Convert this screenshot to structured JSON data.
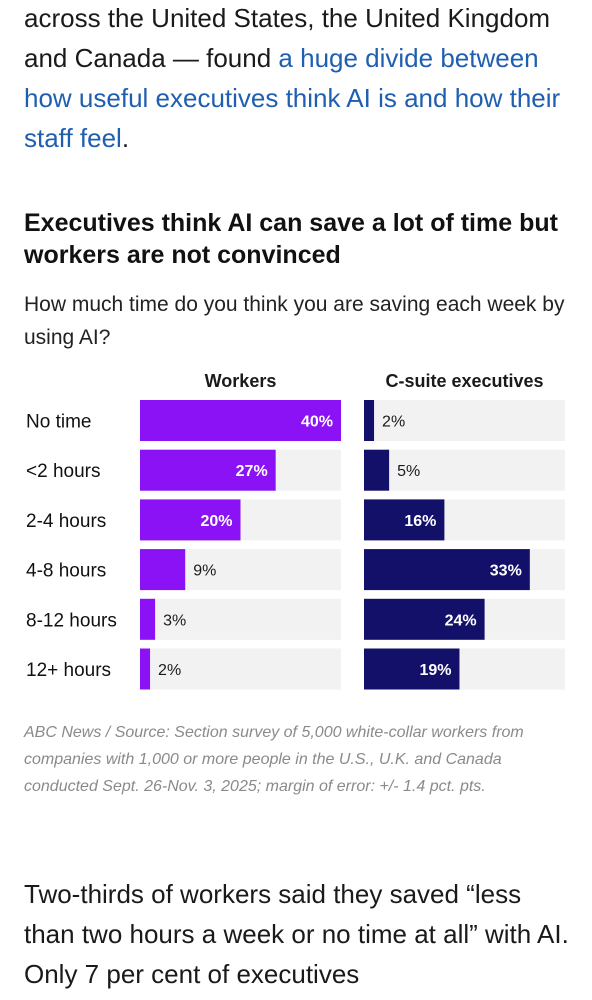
{
  "intro": {
    "text_before": "across the United States, the United Kingdom and Canada — found ",
    "link_text": "a huge divide between how useful executives think AI is and how their staff feel",
    "text_after": "."
  },
  "chart_data": {
    "type": "bar",
    "title": "Executives think AI can save a lot of time but workers are not convinced",
    "subtitle": "How much time do you think you are saving each week by using AI?",
    "categories": [
      "No time",
      "<2 hours",
      "2-4 hours",
      "4-8 hours",
      "8-12 hours",
      "12+ hours"
    ],
    "series": [
      {
        "name": "Workers",
        "values": [
          40,
          27,
          20,
          9,
          3,
          2
        ],
        "color": "#8a12f5"
      },
      {
        "name": "C-suite executives",
        "values": [
          2,
          5,
          16,
          33,
          24,
          19
        ],
        "color": "#13106a"
      }
    ],
    "value_suffix": "%",
    "xlim": [
      0,
      40
    ],
    "track_color": "#f2f2f2",
    "grid": false
  },
  "source": "ABC News / Source: Section survey of 5,000 white-collar workers from companies with 1,000 or more people in the U.S., U.K. and Canada conducted Sept. 26-Nov. 3, 2025; margin of error: +/- 1.4 pct. pts.",
  "after_text": "Two-thirds of workers said they saved “less than two hours a week or no time at all” with AI. Only 7 per cent of executives"
}
